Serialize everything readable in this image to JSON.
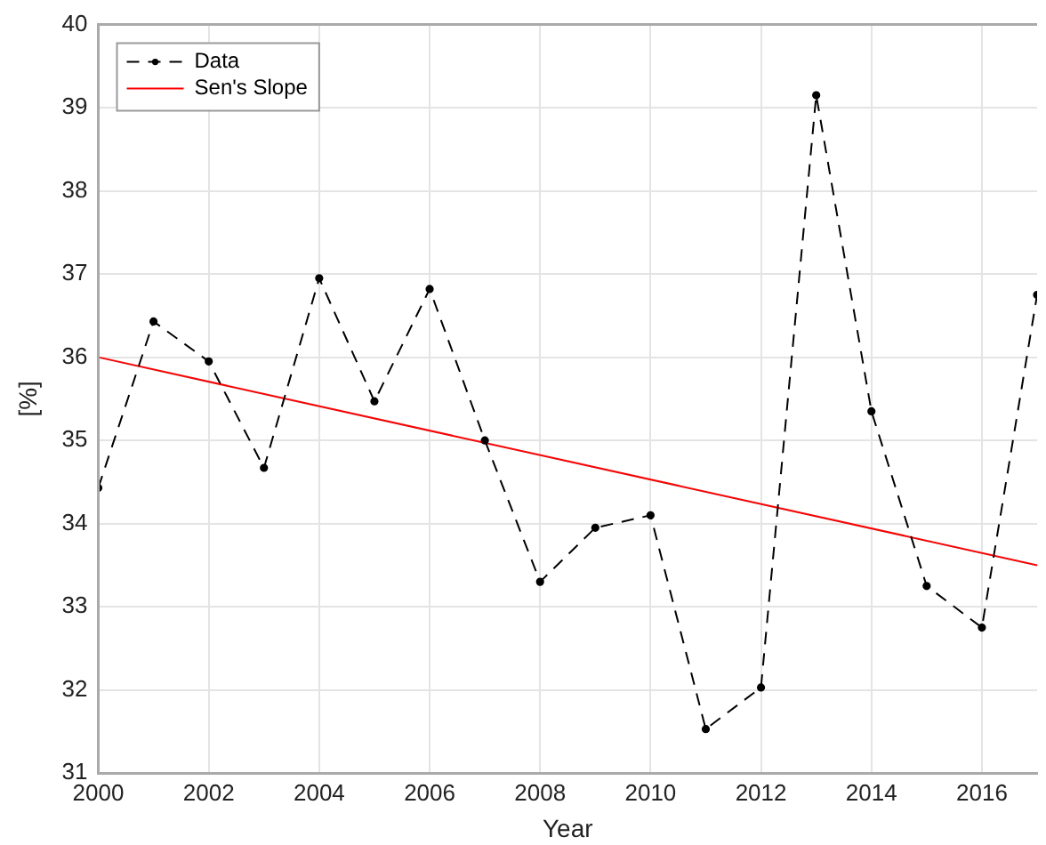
{
  "chart_data": {
    "type": "line",
    "xlabel": "Year",
    "ylabel": "[%]",
    "x": [
      2000,
      2001,
      2002,
      2003,
      2004,
      2005,
      2006,
      2007,
      2008,
      2009,
      2010,
      2011,
      2012,
      2013,
      2014,
      2015,
      2016,
      2017
    ],
    "series": [
      {
        "name": "Data",
        "color": "#000000",
        "marker": "circle",
        "line_style": "dashed",
        "values": [
          34.43,
          36.43,
          35.95,
          34.67,
          36.95,
          35.47,
          36.82,
          35.0,
          33.3,
          33.95,
          34.1,
          31.53,
          32.03,
          39.15,
          35.35,
          33.25,
          32.75,
          36.75
        ]
      },
      {
        "name": "Sen's Slope",
        "color": "#ff0000",
        "marker": "none",
        "line_style": "solid",
        "x": [
          2000,
          2017
        ],
        "values": [
          36.0,
          33.5
        ]
      }
    ],
    "xlim": [
      2000,
      2017
    ],
    "xticks": [
      2000,
      2002,
      2004,
      2006,
      2008,
      2010,
      2012,
      2014,
      2016
    ],
    "ylim": [
      31,
      40
    ],
    "yticks": [
      31,
      32,
      33,
      34,
      35,
      36,
      37,
      38,
      39,
      40
    ],
    "grid": true,
    "legend": "top left"
  }
}
